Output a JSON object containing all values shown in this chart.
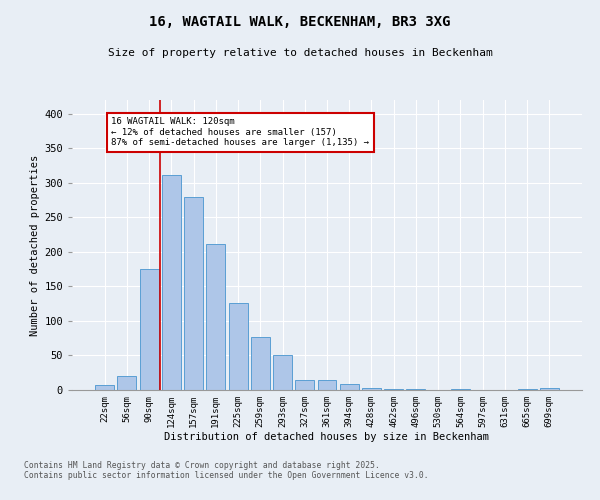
{
  "title1": "16, WAGTAIL WALK, BECKENHAM, BR3 3XG",
  "title2": "Size of property relative to detached houses in Beckenham",
  "xlabel": "Distribution of detached houses by size in Beckenham",
  "ylabel": "Number of detached properties",
  "bar_labels": [
    "22sqm",
    "56sqm",
    "90sqm",
    "124sqm",
    "157sqm",
    "191sqm",
    "225sqm",
    "259sqm",
    "293sqm",
    "327sqm",
    "361sqm",
    "394sqm",
    "428sqm",
    "462sqm",
    "496sqm",
    "530sqm",
    "564sqm",
    "597sqm",
    "631sqm",
    "665sqm",
    "699sqm"
  ],
  "bar_values": [
    7,
    21,
    175,
    311,
    280,
    212,
    126,
    77,
    50,
    15,
    14,
    8,
    3,
    1,
    2,
    0,
    1,
    0,
    0,
    1,
    3
  ],
  "bar_color": "#aec6e8",
  "bar_edge_color": "#5a9fd4",
  "vline_x_idx": 3,
  "vline_color": "#cc0000",
  "annotation_title": "16 WAGTAIL WALK: 120sqm",
  "annotation_line2": "← 12% of detached houses are smaller (157)",
  "annotation_line3": "87% of semi-detached houses are larger (1,135) →",
  "annotation_box_color": "#cc0000",
  "ylim": [
    0,
    420
  ],
  "yticks": [
    0,
    50,
    100,
    150,
    200,
    250,
    300,
    350,
    400
  ],
  "footnote1": "Contains HM Land Registry data © Crown copyright and database right 2025.",
  "footnote2": "Contains public sector information licensed under the Open Government Licence v3.0.",
  "bg_color": "#e8eef5",
  "plot_bg_color": "#e8eef5",
  "grid_color": "#ffffff"
}
